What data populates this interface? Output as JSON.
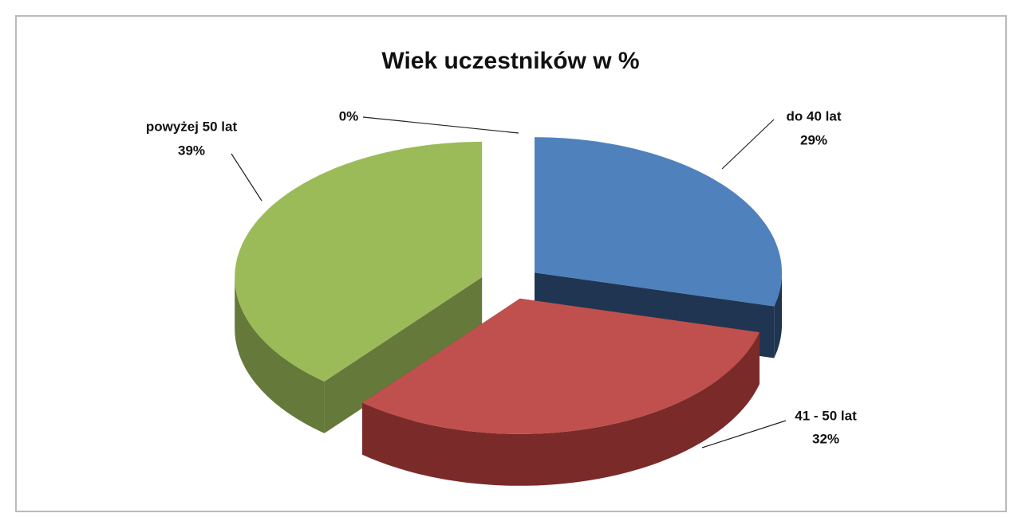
{
  "chart_data": {
    "type": "pie3d",
    "title": "Wiek uczestników w %",
    "categories": [
      "do 40 lat",
      "41 - 50 lat",
      "powyżej 50 lat",
      null
    ],
    "values": [
      29,
      32,
      39,
      0
    ],
    "value_labels": [
      "29%",
      "32%",
      "39%",
      "0%"
    ],
    "colors": [
      "#4f81bd",
      "#c0504d",
      "#9bbb59",
      "#8064a2"
    ],
    "side_colors": [
      "#1f3552",
      "#7a2b29",
      "#64793a",
      "#4d3c62"
    ]
  }
}
